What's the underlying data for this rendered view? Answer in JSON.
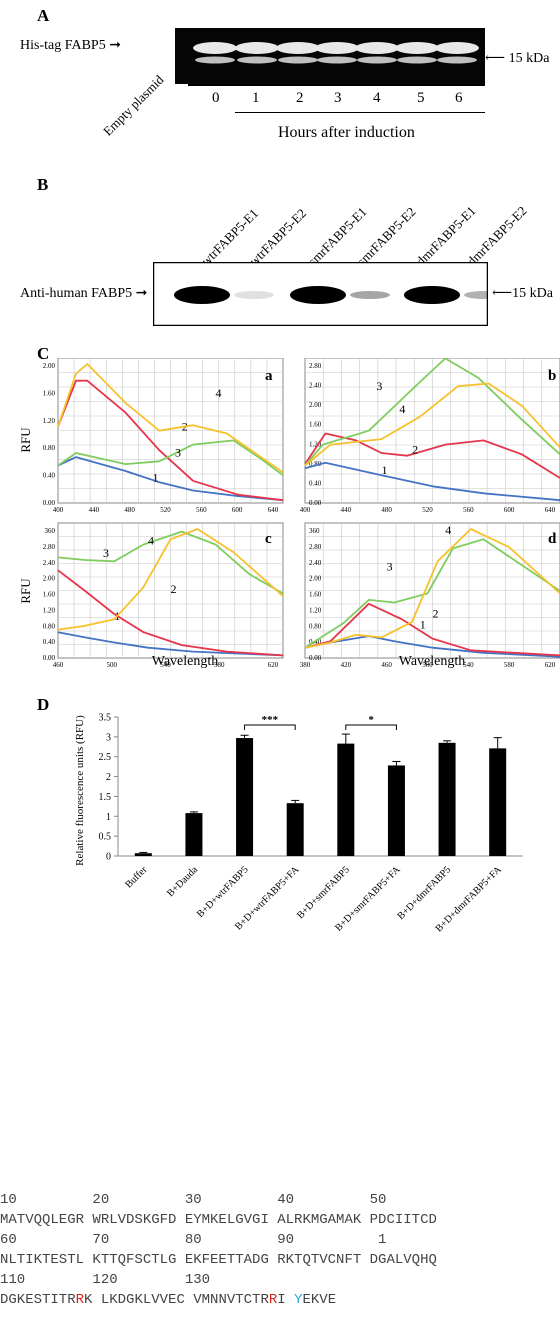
{
  "panelA": {
    "letter": "A",
    "band_label": "His-tag FABP5",
    "marker": "15 kDa",
    "lanes": [
      "0",
      "1",
      "2",
      "3",
      "4",
      "5",
      "6"
    ],
    "empty_label": "Empty plasmid",
    "xlabel": "Hours after induction"
  },
  "panelB": {
    "letter": "B",
    "band_label": "Anti-human FABP5",
    "marker": "15 kDa",
    "lanes": [
      "wtrFABP5-E1",
      "wtrFABP5-E2",
      "smrFABP5-E1",
      "smrFABP5-E2",
      "dmrFABP5-E1",
      "dmrFABP5-E2"
    ]
  },
  "panelC": {
    "letter": "C",
    "ylabel": "RFU",
    "xlabel": "Wavelength",
    "colors": {
      "1": "#4472c4",
      "2": "#e8344a",
      "3": "#7fcc5f",
      "4": "#f7c12c"
    },
    "subplots": [
      {
        "id": "a",
        "xticks": [
          "400",
          "440",
          "480",
          "520",
          "560",
          "600",
          "640"
        ],
        "yticks": [
          "0.00",
          "0.40",
          "0.80",
          "1.20",
          "1.60",
          "2.00"
        ]
      },
      {
        "id": "b",
        "xticks": [
          "400",
          "440",
          "480",
          "520",
          "560",
          "600",
          "640"
        ],
        "yticks": [
          "0.00",
          "0.40",
          "0.80",
          "1.20",
          "1.60",
          "2.00",
          "2.40",
          "2.80"
        ]
      },
      {
        "id": "c",
        "xticks": [
          "460",
          "500",
          "540",
          "580",
          "620"
        ],
        "yticks": [
          "0.00",
          "0.40",
          "0.80",
          "1.20",
          "1.60",
          "2.00",
          "2.40",
          "2.80",
          "360"
        ]
      },
      {
        "id": "d",
        "xticks": [
          "380",
          "420",
          "460",
          "500",
          "540",
          "580",
          "620"
        ],
        "yticks": [
          "0.00",
          "0.40",
          "0.80",
          "1.20",
          "1.60",
          "2.00",
          "2.40",
          "2.80",
          "360"
        ]
      }
    ]
  },
  "panelD": {
    "letter": "D",
    "ylabel": "Relative fluorescence units (RFU)",
    "yticks": [
      "0",
      "0.5",
      "1",
      "1.5",
      "2",
      "2.5",
      "3",
      "3.5"
    ],
    "sig1": "***",
    "sig2": "*"
  },
  "chart_data": {
    "type": "bar",
    "categories": [
      "Buffer",
      "B+Dauda",
      "B+D+wtrFABP5",
      "B+D+wtrFABP5+FA",
      "B+D+smrFABP5",
      "B+D+smrFABP5+FA",
      "B+D+dmrFABP5",
      "B+D+dmrFABP5+FA"
    ],
    "values": [
      0.07,
      1.08,
      2.97,
      1.33,
      2.83,
      2.28,
      2.85,
      2.71
    ],
    "errors": [
      0.02,
      0.03,
      0.07,
      0.07,
      0.24,
      0.1,
      0.05,
      0.27
    ],
    "ylabel": "Relative fluorescence units (RFU)",
    "ylim": [
      0,
      3.5
    ],
    "grid": false,
    "bar_color": "#000000"
  },
  "sequence": {
    "ruler1": "10         20         30         40         50",
    "line1": "MATVQQLEGR WRLVDSKGFD EYMKELGVGI ALRKMGAMAK PDCIITCD",
    "ruler2": "60         70         80         90          1",
    "line2": "NLTIKTESTL KTTQFSCTLG EKFEETTADG RKTQTVCNFT DGALVQHQ",
    "ruler3": "110        120        130",
    "line3_a": "DGKESTITR",
    "line3_r1": "R",
    "line3_b": "K LKDGKLVVEC VMNNVTCTR",
    "line3_r2": "R",
    "line3_c": "I ",
    "line3_y": "Y",
    "line3_d": "EKVE"
  }
}
